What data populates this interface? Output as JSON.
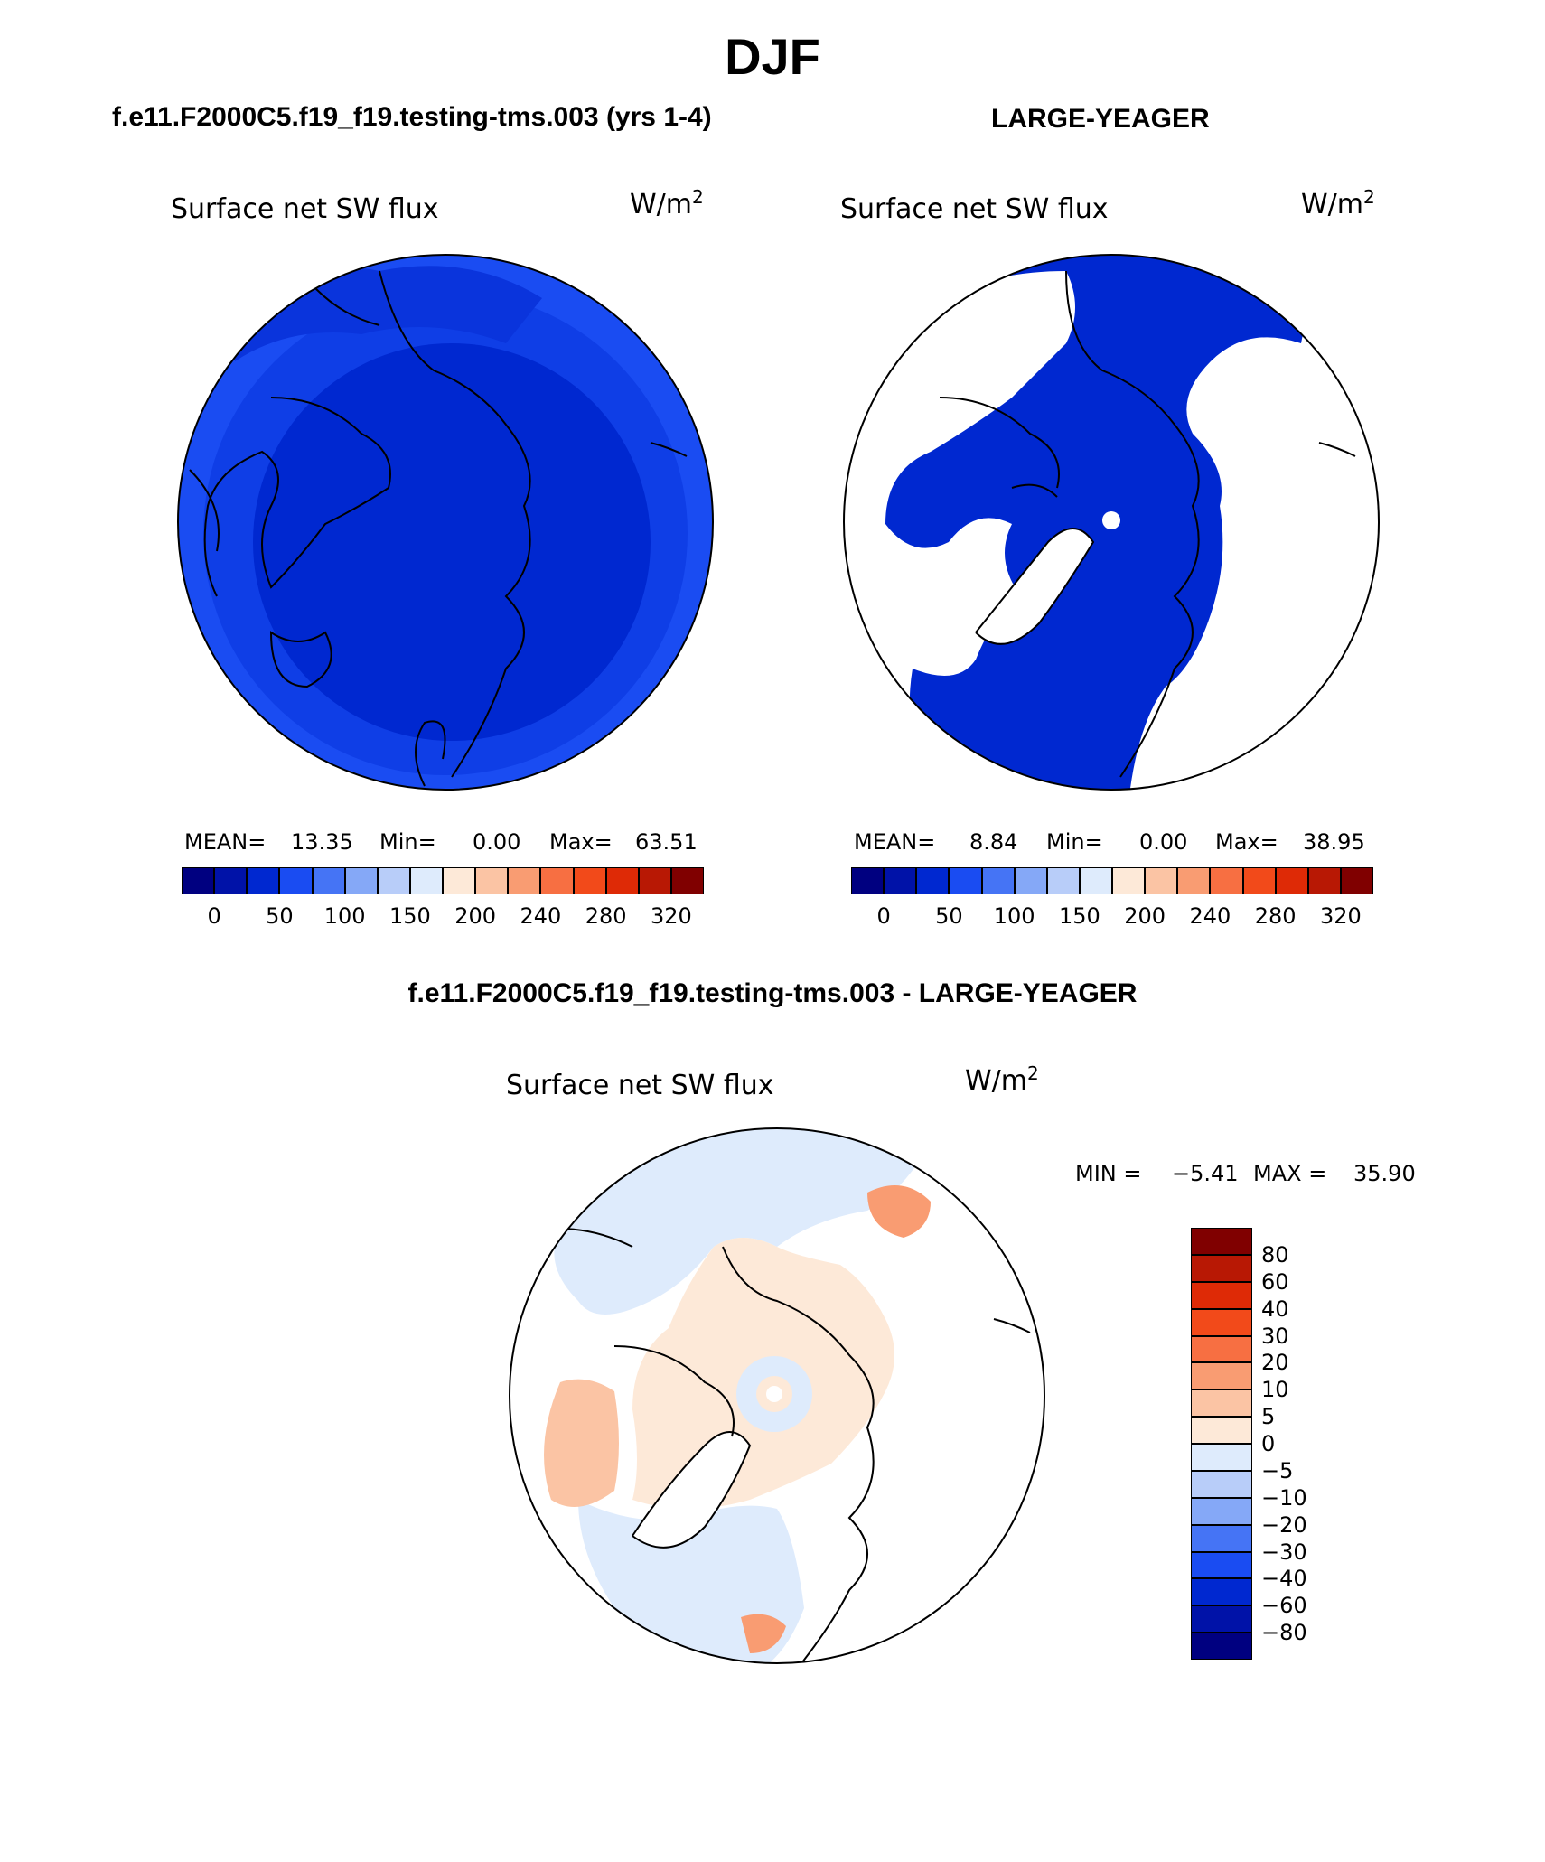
{
  "figure": {
    "season": "DJF",
    "difference_title": "f.e11.F2000C5.f19_f19.testing-tms.003 - LARGE-YEAGER"
  },
  "panels": [
    {
      "case_title": "f.e11.F2000C5.f19_f19.testing-tms.003 (yrs 1-4)",
      "variable": "Surface net SW flux",
      "units_base": "W/m",
      "units_exp": "2",
      "stats": {
        "mean_label": "MEAN=",
        "mean": "13.35",
        "min_label": "Min=",
        "min": "0.00",
        "max_label": "Max=",
        "max": "63.51"
      }
    },
    {
      "case_title": "LARGE-YEAGER",
      "variable": "Surface net SW flux",
      "units_base": "W/m",
      "units_exp": "2",
      "stats": {
        "mean_label": "MEAN=",
        "mean": "8.84",
        "min_label": "Min=",
        "min": "0.00",
        "max_label": "Max=",
        "max": "38.95"
      }
    },
    {
      "variable": "Surface net SW flux",
      "units_base": "W/m",
      "units_exp": "2",
      "minmax": {
        "min_label": "MIN =",
        "min": "−5.41",
        "max_label": "MAX =",
        "max": "35.90"
      }
    }
  ],
  "colorbar_main": {
    "colors": [
      "#000080",
      "#0012a8",
      "#0028d0",
      "#1a4cf2",
      "#4574f5",
      "#85a8f7",
      "#b8cdf9",
      "#deebfc",
      "#fde9d8",
      "#fbc4a4",
      "#f99c72",
      "#f76f42",
      "#f24a1a",
      "#de2a06",
      "#b81804",
      "#800000"
    ],
    "tick_labels": [
      "0",
      "50",
      "100",
      "150",
      "200",
      "240",
      "280",
      "320"
    ]
  },
  "colorbar_diff": {
    "colors": [
      "#800000",
      "#b81804",
      "#de2a06",
      "#f24a1a",
      "#f76f42",
      "#f99c72",
      "#fbc4a4",
      "#fde9d8",
      "#deebfc",
      "#b8cdf9",
      "#85a8f7",
      "#4574f5",
      "#1a4cf2",
      "#0028d0",
      "#0012a8",
      "#000080"
    ],
    "tick_labels": [
      "80",
      "60",
      "40",
      "30",
      "20",
      "10",
      "5",
      "0",
      "−5",
      "−10",
      "−20",
      "−30",
      "−40",
      "−60",
      "−80"
    ]
  }
}
